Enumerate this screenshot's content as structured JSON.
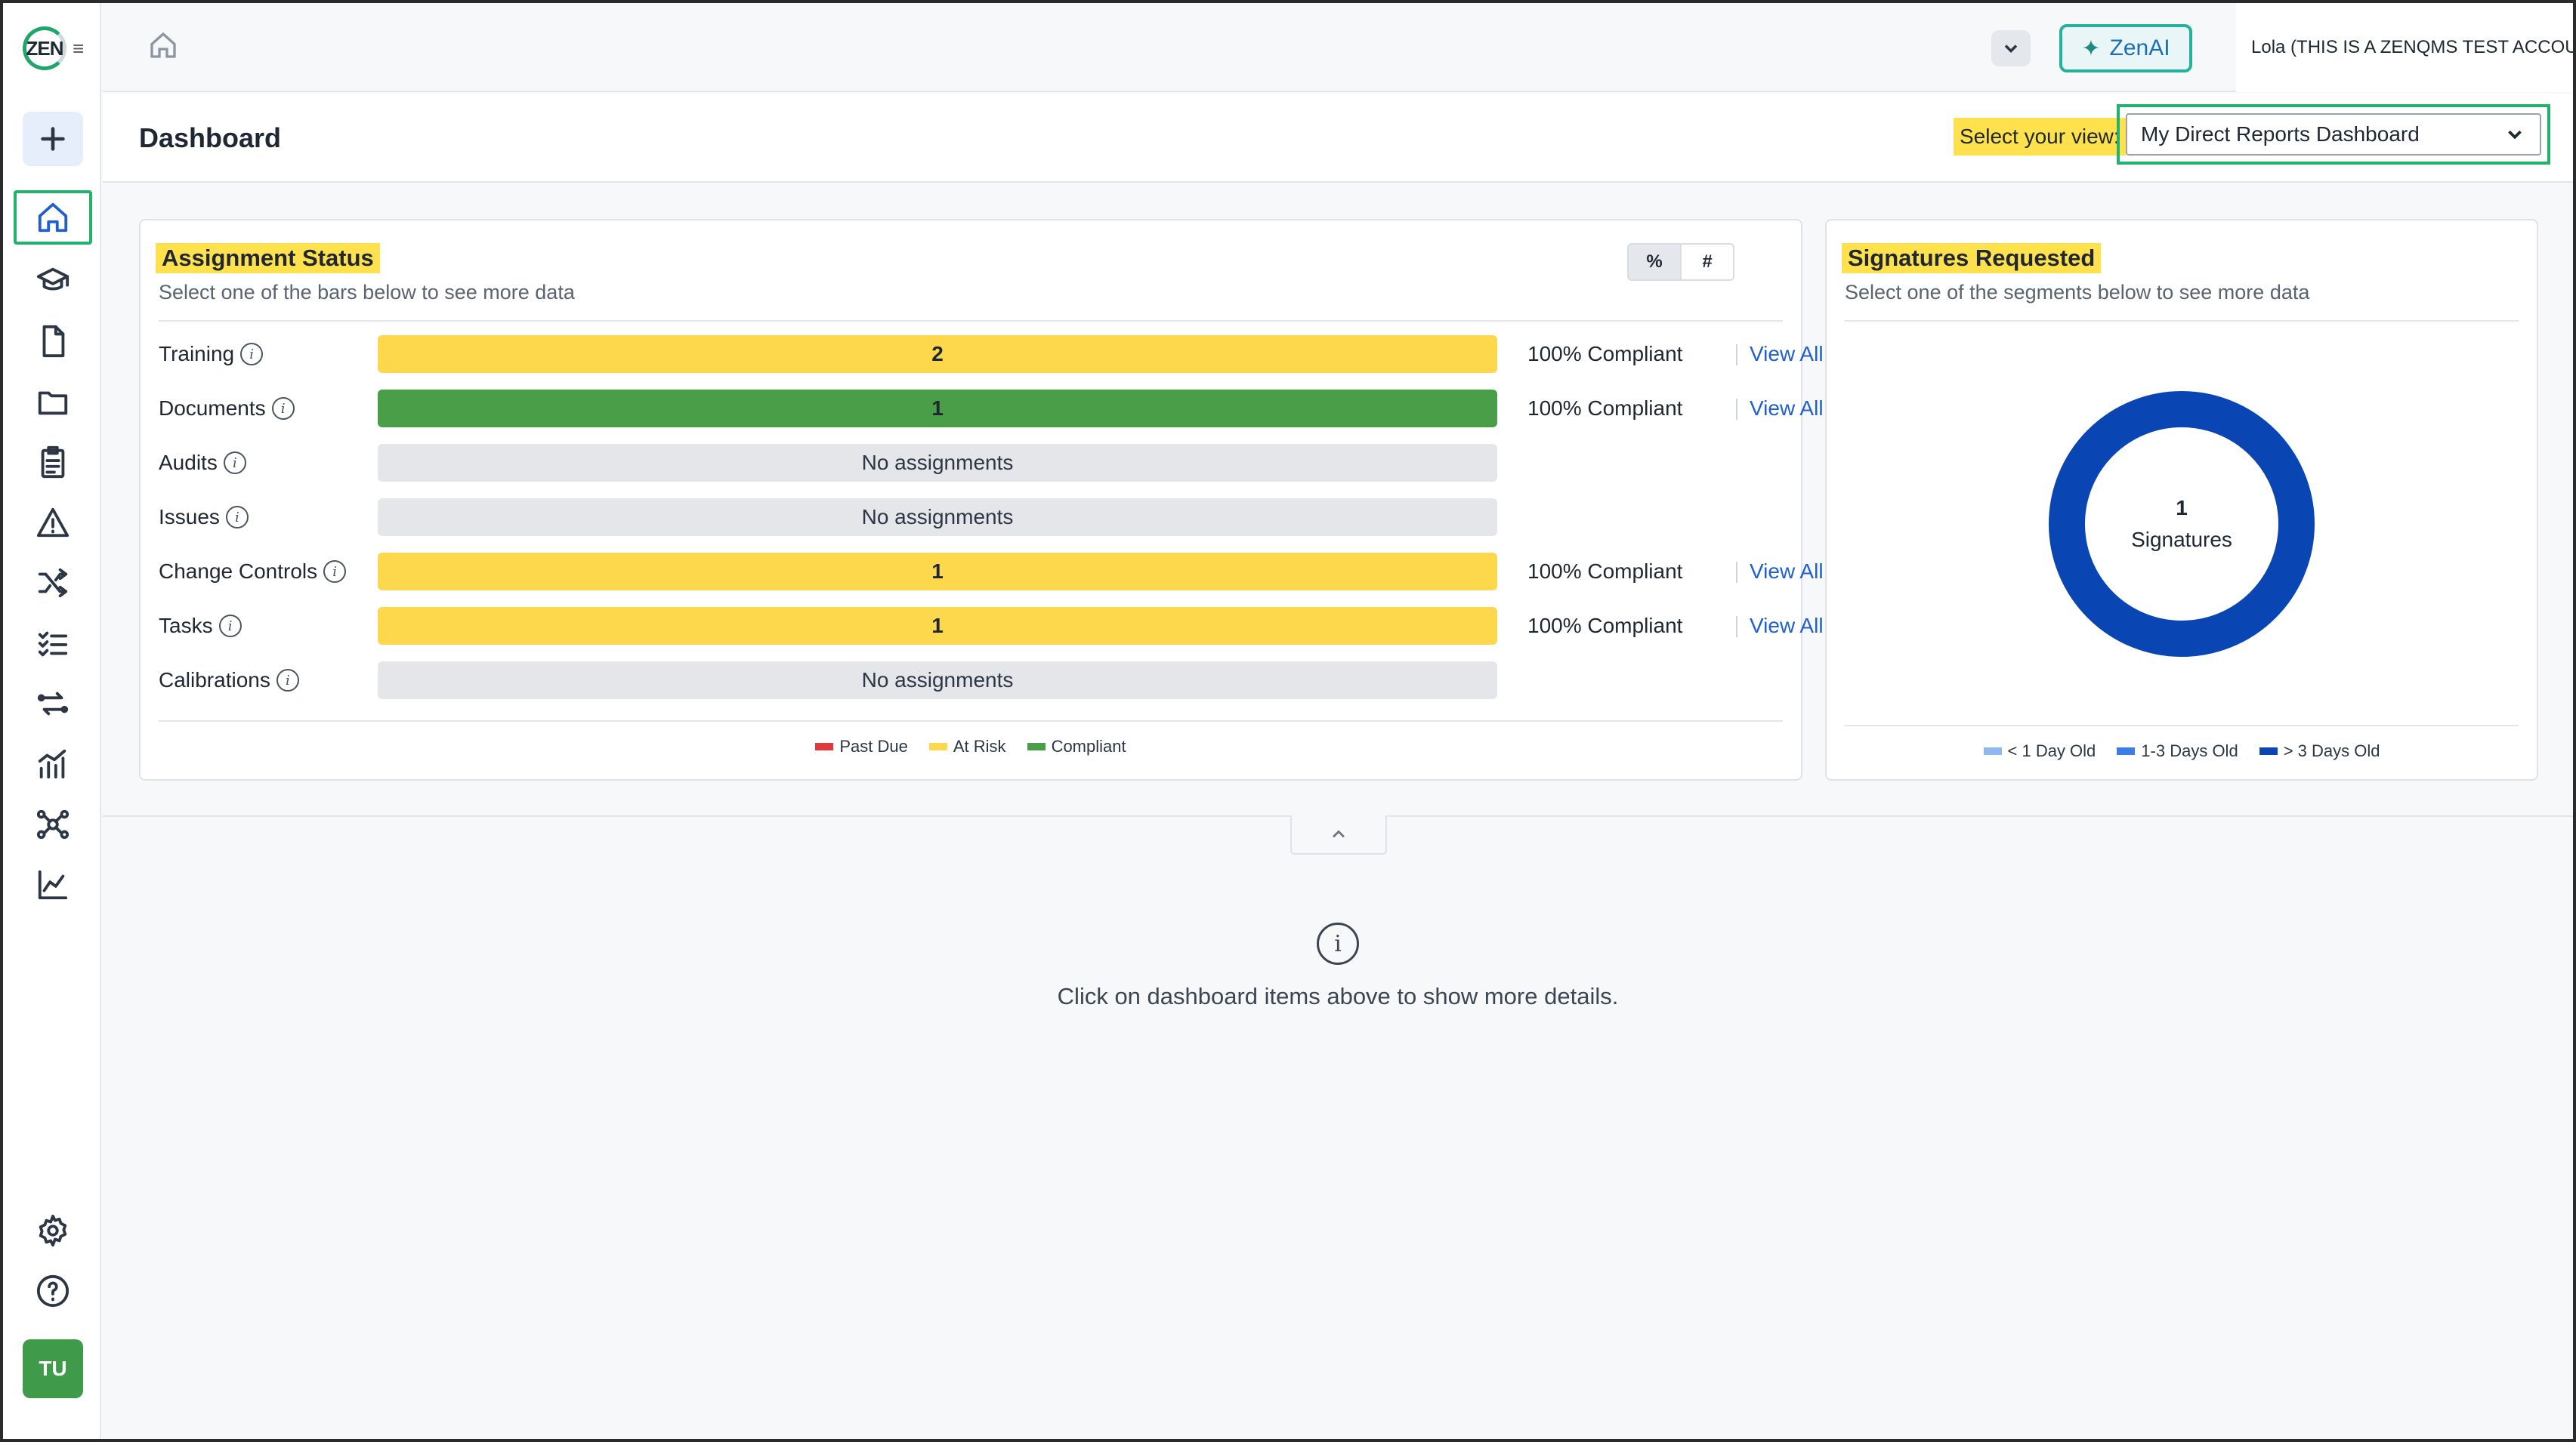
{
  "app": {
    "logo_text": "ZEN",
    "avatar_initials": "TU"
  },
  "topbar": {
    "zenai_label": "ZenAI",
    "user_name": "Lola (THIS IS A ZENQMS TEST ACCOUNT)"
  },
  "header": {
    "title": "Dashboard",
    "view_label": "Select your view:",
    "view_selected": "My Direct Reports Dashboard"
  },
  "sidebar": {
    "icons": [
      "plus-icon",
      "home-icon",
      "graduation-cap-icon",
      "document-icon",
      "folder-icon",
      "clipboard-icon",
      "warning-icon",
      "shuffle-icon",
      "list-check-icon",
      "arrows-swap-icon",
      "bar-chart-icon",
      "network-icon",
      "line-chart-icon",
      "gear-icon",
      "help-icon"
    ]
  },
  "assignment": {
    "title": "Assignment Status",
    "subtitle": "Select one of the bars below to see more data",
    "toggle_pct": "%",
    "toggle_num": "#",
    "rows": [
      {
        "label": "Training",
        "bar_text": "2",
        "status": "yellow",
        "compliant": "100% Compliant",
        "view_all": "View All"
      },
      {
        "label": "Documents",
        "bar_text": "1",
        "status": "green",
        "compliant": "100% Compliant",
        "view_all": "View All"
      },
      {
        "label": "Audits",
        "bar_text": "No assignments",
        "status": "gray",
        "compliant": "",
        "view_all": ""
      },
      {
        "label": "Issues",
        "bar_text": "No assignments",
        "status": "gray",
        "compliant": "",
        "view_all": ""
      },
      {
        "label": "Change Controls",
        "bar_text": "1",
        "status": "yellow",
        "compliant": "100% Compliant",
        "view_all": "View All"
      },
      {
        "label": "Tasks",
        "bar_text": "1",
        "status": "yellow",
        "compliant": "100% Compliant",
        "view_all": "View All"
      },
      {
        "label": "Calibrations",
        "bar_text": "No assignments",
        "status": "gray",
        "compliant": "",
        "view_all": ""
      }
    ],
    "legend": [
      {
        "label": "Past Due",
        "color": "#e0393e"
      },
      {
        "label": "At Risk",
        "color": "#fdd84c"
      },
      {
        "label": "Compliant",
        "color": "#4a9e47"
      }
    ]
  },
  "signatures": {
    "title": "Signatures Requested",
    "subtitle": "Select one of the segments below to see more data",
    "center_count": "1",
    "center_label": "Signatures",
    "legend": [
      {
        "label": "< 1 Day Old",
        "color": "#8fb8f0"
      },
      {
        "label": "1-3 Days Old",
        "color": "#3a7ee6"
      },
      {
        "label": "> 3 Days Old",
        "color": "#0a45b4"
      }
    ],
    "chart_data": {
      "type": "pie",
      "categories": [
        "< 1 Day Old",
        "1-3 Days Old",
        "> 3 Days Old"
      ],
      "values": [
        0,
        0,
        1
      ]
    }
  },
  "details": {
    "message": "Click on dashboard items above to show more details."
  },
  "colors": {
    "accent_green": "#23b26d",
    "link_blue": "#1f5fcf",
    "highlight": "#ffe14d"
  }
}
